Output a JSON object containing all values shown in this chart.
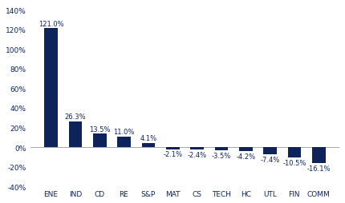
{
  "categories": [
    "ENE",
    "IND",
    "CD",
    "RE",
    "S&P",
    "MAT",
    "CS",
    "TECH",
    "HC",
    "UTL",
    "FIN",
    "COMM"
  ],
  "values": [
    121.0,
    26.3,
    13.5,
    11.0,
    4.1,
    -2.1,
    -2.4,
    -3.5,
    -4.2,
    -7.4,
    -10.5,
    -16.1
  ],
  "bar_color": "#0d2359",
  "label_color": "#0d2359",
  "title_color": "#0d2359",
  "background_color": "#ffffff",
  "ylim": [
    -40,
    145
  ],
  "yticks": [
    -40,
    -20,
    0,
    20,
    40,
    60,
    80,
    100,
    120,
    140
  ],
  "title_fontsize": 9.5,
  "subtitle_fontsize": 8,
  "label_fontsize": 6.0,
  "tick_fontsize": 6.5
}
